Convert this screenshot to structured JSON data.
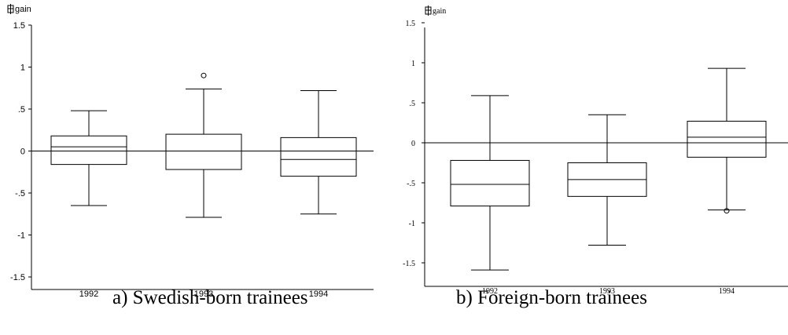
{
  "chart_data": [
    {
      "type": "box",
      "ylabel": "gain",
      "categories": [
        "1992",
        "1993",
        "1994"
      ],
      "ylim": [
        -1.6,
        1.5
      ],
      "yticks": [
        1.5,
        1,
        0.5,
        0,
        -0.5,
        -1,
        -1.5
      ],
      "ytick_labels": [
        "1.5",
        "1",
        ".5",
        "0",
        "-.5",
        "-1",
        "-1.5"
      ],
      "reference_line": 0,
      "boxes": [
        {
          "category": "1992",
          "whisker_low": -0.65,
          "q1": -0.16,
          "median": 0.05,
          "q3": 0.18,
          "whisker_high": 0.48,
          "outliers": []
        },
        {
          "category": "1993",
          "whisker_low": -0.79,
          "q1": -0.22,
          "median": 0.0,
          "q3": 0.2,
          "whisker_high": 0.74,
          "outliers": [
            0.9
          ]
        },
        {
          "category": "1994",
          "whisker_low": -0.75,
          "q1": -0.3,
          "median": -0.1,
          "q3": 0.16,
          "whisker_high": 0.72,
          "outliers": []
        }
      ],
      "caption": "a) Swedish-born trainees"
    },
    {
      "type": "box",
      "ylabel": "gain",
      "categories": [
        "1992",
        "1993",
        "1994"
      ],
      "ylim": [
        -1.8,
        1.5
      ],
      "yticks": [
        1.5,
        1,
        0.5,
        0,
        -0.5,
        -1,
        -1.5
      ],
      "ytick_labels": [
        "1.5",
        "1",
        ".5",
        "0",
        "-.5",
        "-1",
        "-1.5"
      ],
      "reference_line": 0,
      "boxes": [
        {
          "category": "1992",
          "whisker_low": -1.59,
          "q1": -0.79,
          "median": -0.52,
          "q3": -0.22,
          "whisker_high": 0.59,
          "outliers": []
        },
        {
          "category": "1993",
          "whisker_low": -1.28,
          "q1": -0.67,
          "median": -0.46,
          "q3": -0.25,
          "whisker_high": 0.35,
          "outliers": []
        },
        {
          "category": "1994",
          "whisker_low": -0.84,
          "q1": -0.18,
          "median": 0.07,
          "q3": 0.27,
          "whisker_high": 0.93,
          "outliers": [
            -0.85
          ]
        }
      ],
      "caption": "b) Foreign-born trainees"
    }
  ]
}
